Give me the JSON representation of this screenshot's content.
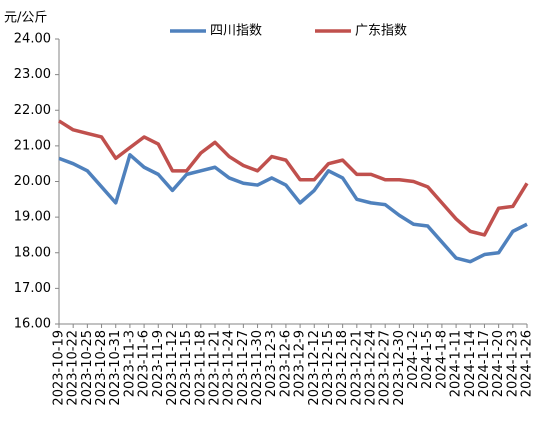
{
  "chart_data": {
    "type": "line",
    "y_label": "元/公斤",
    "categories": [
      "2023-10-19",
      "2023-10-22",
      "2023-10-25",
      "2023-10-28",
      "2023-10-31",
      "2023-11-3",
      "2023-11-6",
      "2023-11-9",
      "2023-11-12",
      "2023-11-15",
      "2023-11-18",
      "2023-11-21",
      "2023-11-24",
      "2023-11-27",
      "2023-11-30",
      "2023-12-3",
      "2023-12-6",
      "2023-12-9",
      "2023-12-12",
      "2023-12-15",
      "2023-12-18",
      "2023-12-21",
      "2023-12-24",
      "2023-12-27",
      "2023-12-30",
      "2024-1-2",
      "2024-1-5",
      "2024-1-8",
      "2024-1-11",
      "2024-1-14",
      "2024-1-17",
      "2024-1-20",
      "2024-1-23",
      "2024-1-26"
    ],
    "series": [
      {
        "name": "四川指数",
        "color": "#4f81bd",
        "values": [
          20.65,
          20.5,
          20.3,
          19.85,
          19.4,
          20.75,
          20.4,
          20.2,
          19.75,
          20.2,
          20.3,
          20.4,
          20.1,
          19.95,
          19.9,
          20.1,
          19.9,
          19.4,
          19.75,
          20.3,
          20.1,
          19.5,
          19.4,
          19.35,
          19.05,
          18.8,
          18.75,
          18.3,
          17.85,
          17.75,
          17.95,
          18.0,
          18.6,
          18.8
        ]
      },
      {
        "name": "广东指数",
        "color": "#c0504d",
        "values": [
          21.7,
          21.45,
          21.35,
          21.25,
          20.65,
          20.95,
          21.25,
          21.05,
          20.3,
          20.3,
          20.8,
          21.1,
          20.7,
          20.45,
          20.3,
          20.7,
          20.6,
          20.05,
          20.05,
          20.5,
          20.6,
          20.2,
          20.2,
          20.05,
          20.05,
          20.0,
          19.85,
          19.4,
          18.95,
          18.6,
          18.5,
          19.25,
          19.3,
          19.95
        ]
      }
    ],
    "ylim": [
      16,
      24
    ],
    "yticks": [
      {
        "value": 16,
        "label": "16.00"
      },
      {
        "value": 17,
        "label": "17.00"
      },
      {
        "value": 18,
        "label": "18.00"
      },
      {
        "value": 19,
        "label": "19.00"
      },
      {
        "value": 20,
        "label": "20.00"
      },
      {
        "value": 21,
        "label": "21.00"
      },
      {
        "value": 22,
        "label": "22.00"
      },
      {
        "value": 23,
        "label": "23.00"
      },
      {
        "value": 24,
        "label": "24.00"
      }
    ],
    "legend": "top"
  }
}
